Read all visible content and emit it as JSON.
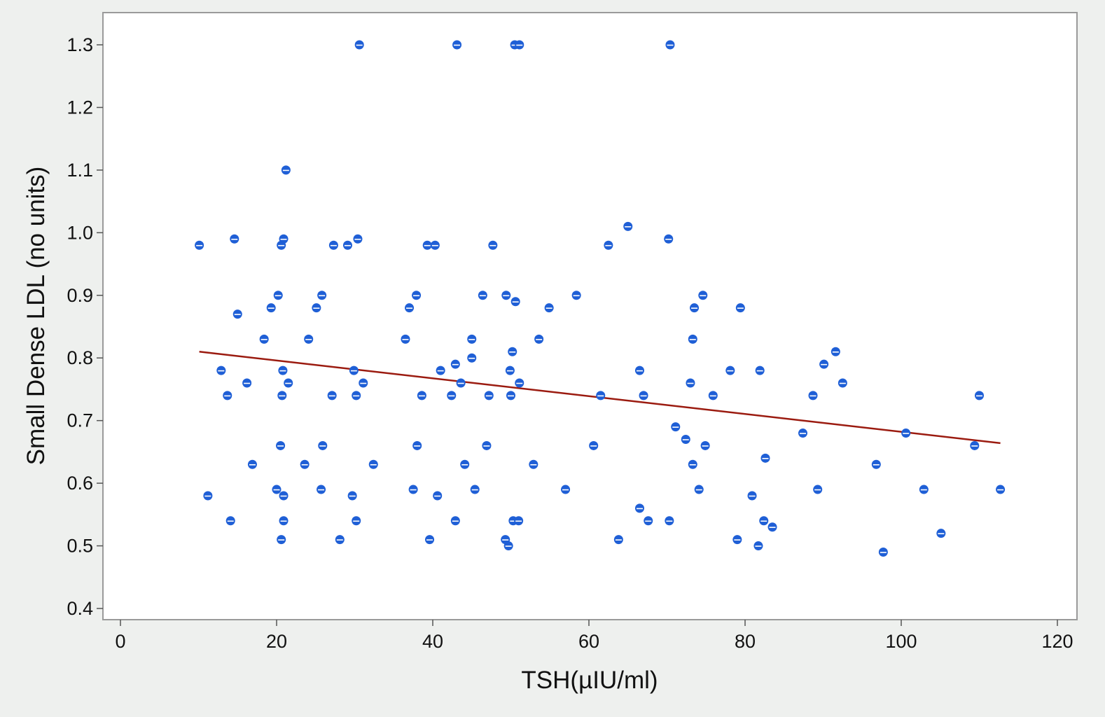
{
  "chart_data": {
    "type": "scatter",
    "xlabel": "TSH(µIU/ml)",
    "ylabel": "Small Dense  LDL (no units)",
    "xlim": [
      -1,
      122
    ],
    "ylim": [
      0.388,
      1.355
    ],
    "x_ticks": [
      0,
      20,
      40,
      60,
      80,
      100,
      120
    ],
    "y_ticks": [
      0.4,
      0.5,
      0.6,
      0.7,
      0.8,
      0.9,
      1.0,
      1.1,
      1.2,
      1.3
    ],
    "x_tick_labels": [
      "0",
      "20",
      "40",
      "60",
      "80",
      "100",
      "120"
    ],
    "y_tick_labels": [
      "0.4",
      "0.5",
      "0.6",
      "0.7",
      "0.8",
      "0.9",
      "1.0",
      "1.1",
      "1.2",
      "1.3"
    ],
    "grid": false,
    "colors": {
      "points": "#1f5fd6",
      "fit_line": "#9b1b10",
      "background": "#eef0ee",
      "plot_area": "#ffffff",
      "frame": "#9a9a9a"
    },
    "points": [
      {
        "x": 30.6,
        "y": 1.3
      },
      {
        "x": 43.1,
        "y": 1.3
      },
      {
        "x": 50.5,
        "y": 1.3
      },
      {
        "x": 51.1,
        "y": 1.3
      },
      {
        "x": 70.4,
        "y": 1.3
      },
      {
        "x": 21.2,
        "y": 1.1
      },
      {
        "x": 10.1,
        "y": 0.98
      },
      {
        "x": 14.6,
        "y": 0.99
      },
      {
        "x": 20.6,
        "y": 0.98
      },
      {
        "x": 20.9,
        "y": 0.99
      },
      {
        "x": 27.3,
        "y": 0.98
      },
      {
        "x": 29.1,
        "y": 0.98
      },
      {
        "x": 30.4,
        "y": 0.99
      },
      {
        "x": 39.3,
        "y": 0.98
      },
      {
        "x": 40.3,
        "y": 0.98
      },
      {
        "x": 47.7,
        "y": 0.98
      },
      {
        "x": 62.5,
        "y": 0.98
      },
      {
        "x": 65.0,
        "y": 1.01
      },
      {
        "x": 70.2,
        "y": 0.99
      },
      {
        "x": 15.0,
        "y": 0.87
      },
      {
        "x": 19.3,
        "y": 0.88
      },
      {
        "x": 20.2,
        "y": 0.9
      },
      {
        "x": 25.1,
        "y": 0.88
      },
      {
        "x": 25.8,
        "y": 0.9
      },
      {
        "x": 37.0,
        "y": 0.88
      },
      {
        "x": 37.9,
        "y": 0.9
      },
      {
        "x": 46.4,
        "y": 0.9
      },
      {
        "x": 49.4,
        "y": 0.9
      },
      {
        "x": 50.6,
        "y": 0.89
      },
      {
        "x": 54.9,
        "y": 0.88
      },
      {
        "x": 58.4,
        "y": 0.9
      },
      {
        "x": 73.5,
        "y": 0.88
      },
      {
        "x": 74.6,
        "y": 0.9
      },
      {
        "x": 79.4,
        "y": 0.88
      },
      {
        "x": 18.4,
        "y": 0.83
      },
      {
        "x": 24.1,
        "y": 0.83
      },
      {
        "x": 36.5,
        "y": 0.83
      },
      {
        "x": 45.0,
        "y": 0.83
      },
      {
        "x": 53.6,
        "y": 0.83
      },
      {
        "x": 73.3,
        "y": 0.83
      },
      {
        "x": 12.9,
        "y": 0.78
      },
      {
        "x": 13.7,
        "y": 0.74
      },
      {
        "x": 16.2,
        "y": 0.76
      },
      {
        "x": 20.7,
        "y": 0.74
      },
      {
        "x": 20.8,
        "y": 0.78
      },
      {
        "x": 21.5,
        "y": 0.76
      },
      {
        "x": 27.1,
        "y": 0.74
      },
      {
        "x": 29.9,
        "y": 0.78
      },
      {
        "x": 30.2,
        "y": 0.74
      },
      {
        "x": 31.1,
        "y": 0.76
      },
      {
        "x": 38.6,
        "y": 0.74
      },
      {
        "x": 41.0,
        "y": 0.78
      },
      {
        "x": 42.4,
        "y": 0.74
      },
      {
        "x": 42.9,
        "y": 0.79
      },
      {
        "x": 43.6,
        "y": 0.76
      },
      {
        "x": 45.0,
        "y": 0.8
      },
      {
        "x": 47.2,
        "y": 0.74
      },
      {
        "x": 49.9,
        "y": 0.78
      },
      {
        "x": 50.0,
        "y": 0.74
      },
      {
        "x": 50.2,
        "y": 0.81
      },
      {
        "x": 51.1,
        "y": 0.76
      },
      {
        "x": 61.5,
        "y": 0.74
      },
      {
        "x": 66.5,
        "y": 0.78
      },
      {
        "x": 67.0,
        "y": 0.74
      },
      {
        "x": 73.0,
        "y": 0.76
      },
      {
        "x": 75.9,
        "y": 0.74
      },
      {
        "x": 78.1,
        "y": 0.78
      },
      {
        "x": 81.9,
        "y": 0.78
      },
      {
        "x": 88.7,
        "y": 0.74
      },
      {
        "x": 90.1,
        "y": 0.79
      },
      {
        "x": 91.6,
        "y": 0.81
      },
      {
        "x": 92.5,
        "y": 0.76
      },
      {
        "x": 110.0,
        "y": 0.74
      },
      {
        "x": 71.1,
        "y": 0.69
      },
      {
        "x": 72.4,
        "y": 0.67
      },
      {
        "x": 87.4,
        "y": 0.68
      },
      {
        "x": 100.6,
        "y": 0.68
      },
      {
        "x": 11.2,
        "y": 0.58
      },
      {
        "x": 14.1,
        "y": 0.54
      },
      {
        "x": 16.9,
        "y": 0.63
      },
      {
        "x": 20.0,
        "y": 0.59
      },
      {
        "x": 20.5,
        "y": 0.66
      },
      {
        "x": 20.6,
        "y": 0.51
      },
      {
        "x": 20.9,
        "y": 0.58
      },
      {
        "x": 20.9,
        "y": 0.54
      },
      {
        "x": 23.6,
        "y": 0.63
      },
      {
        "x": 25.7,
        "y": 0.59
      },
      {
        "x": 25.9,
        "y": 0.66
      },
      {
        "x": 28.1,
        "y": 0.51
      },
      {
        "x": 29.7,
        "y": 0.58
      },
      {
        "x": 30.2,
        "y": 0.54
      },
      {
        "x": 32.4,
        "y": 0.63
      },
      {
        "x": 37.5,
        "y": 0.59
      },
      {
        "x": 38.0,
        "y": 0.66
      },
      {
        "x": 39.6,
        "y": 0.51
      },
      {
        "x": 40.6,
        "y": 0.58
      },
      {
        "x": 42.9,
        "y": 0.54
      },
      {
        "x": 44.1,
        "y": 0.63
      },
      {
        "x": 45.4,
        "y": 0.59
      },
      {
        "x": 46.9,
        "y": 0.66
      },
      {
        "x": 49.3,
        "y": 0.51
      },
      {
        "x": 49.7,
        "y": 0.5
      },
      {
        "x": 50.3,
        "y": 0.54
      },
      {
        "x": 51.0,
        "y": 0.54
      },
      {
        "x": 52.9,
        "y": 0.63
      },
      {
        "x": 57.0,
        "y": 0.59
      },
      {
        "x": 60.6,
        "y": 0.66
      },
      {
        "x": 63.8,
        "y": 0.51
      },
      {
        "x": 66.5,
        "y": 0.56
      },
      {
        "x": 67.6,
        "y": 0.54
      },
      {
        "x": 70.3,
        "y": 0.54
      },
      {
        "x": 73.3,
        "y": 0.63
      },
      {
        "x": 74.1,
        "y": 0.59
      },
      {
        "x": 74.9,
        "y": 0.66
      },
      {
        "x": 79.0,
        "y": 0.51
      },
      {
        "x": 80.9,
        "y": 0.58
      },
      {
        "x": 81.7,
        "y": 0.5
      },
      {
        "x": 82.4,
        "y": 0.54
      },
      {
        "x": 82.6,
        "y": 0.64
      },
      {
        "x": 83.5,
        "y": 0.53
      },
      {
        "x": 89.3,
        "y": 0.59
      },
      {
        "x": 96.8,
        "y": 0.63
      },
      {
        "x": 97.7,
        "y": 0.49
      },
      {
        "x": 102.9,
        "y": 0.59
      },
      {
        "x": 105.1,
        "y": 0.52
      },
      {
        "x": 109.4,
        "y": 0.66
      },
      {
        "x": 112.7,
        "y": 0.59
      }
    ],
    "fit_line": {
      "x": [
        10.1,
        112.7
      ],
      "y": [
        0.81,
        0.664
      ]
    }
  }
}
